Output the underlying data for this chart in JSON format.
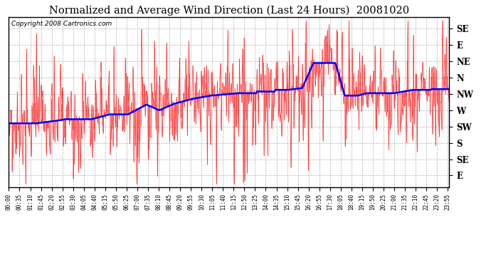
{
  "title": "Normalized and Average Wind Direction (Last 24 Hours)  20081020",
  "copyright": "Copyright 2008 Cartronics.com",
  "ytick_labels": [
    "SE",
    "E",
    "NE",
    "N",
    "NW",
    "W",
    "SW",
    "S",
    "SE",
    "E"
  ],
  "ytick_values": [
    1,
    2,
    3,
    4,
    5,
    6,
    7,
    8,
    9,
    10
  ],
  "ylim": [
    0.3,
    10.7
  ],
  "background_color": "#ffffff",
  "plot_bg_color": "#ffffff",
  "grid_color": "#aaaaaa",
  "red_color": "#ff0000",
  "blue_color": "#0000ff",
  "title_fontsize": 10.5,
  "copyright_fontsize": 6.5,
  "tick_label_fontsize": 8.5,
  "n_points": 576,
  "xtick_interval_min": 35
}
